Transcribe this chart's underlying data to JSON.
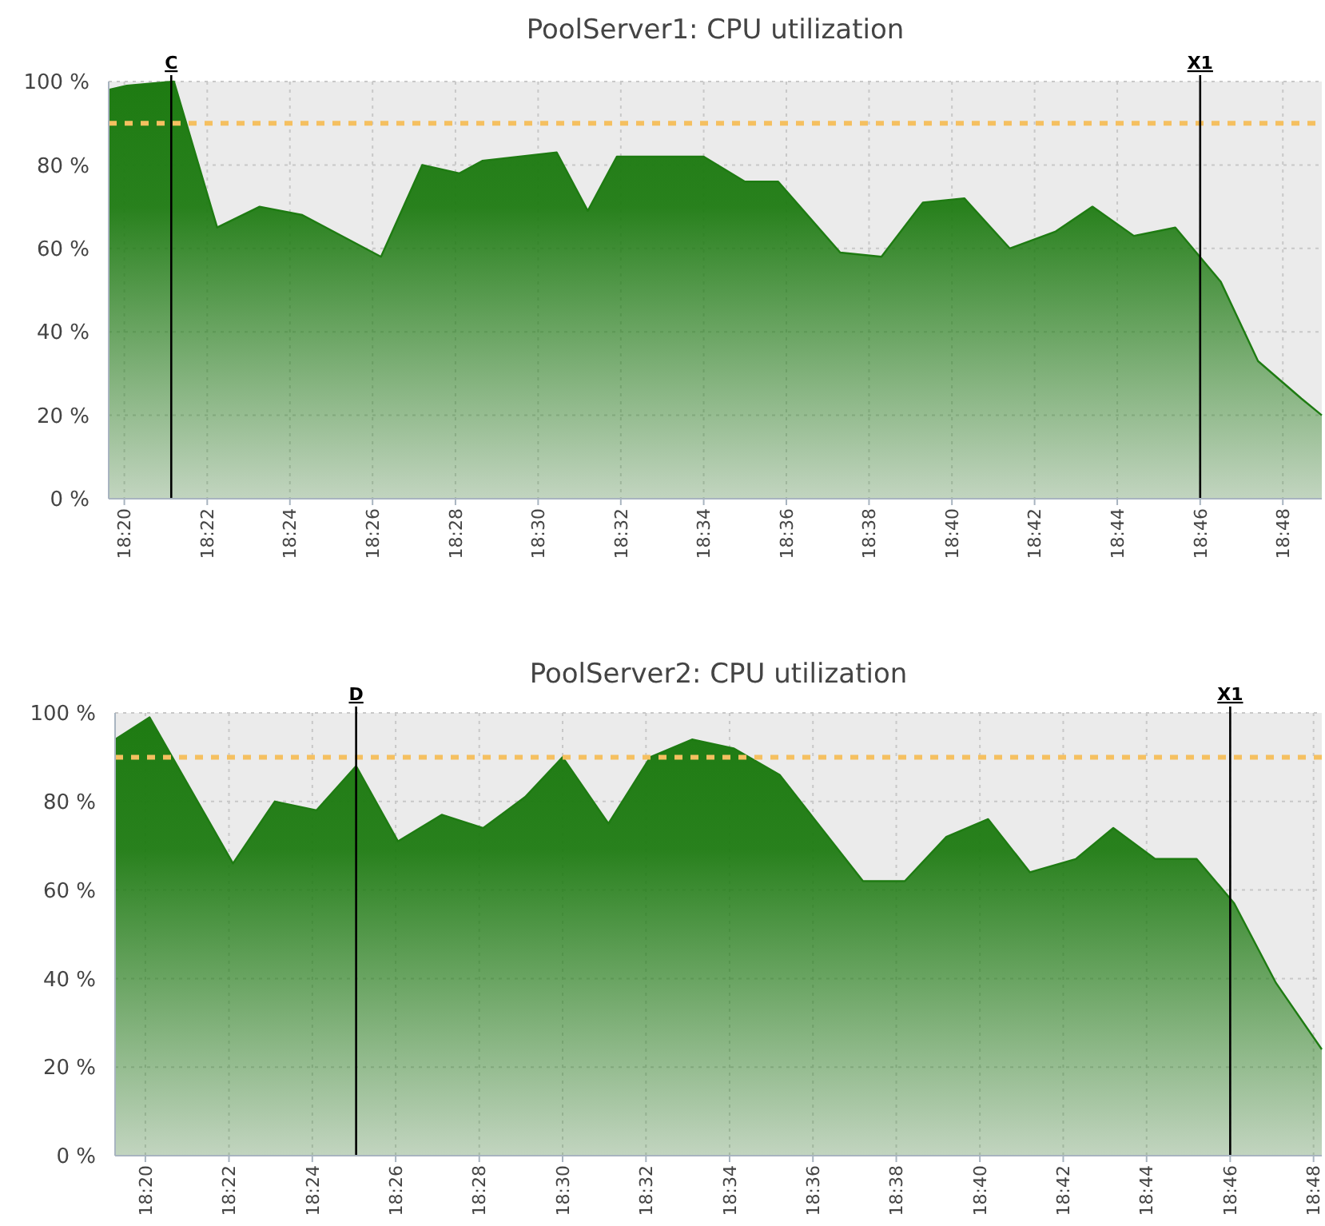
{
  "chart_data": [
    {
      "type": "area",
      "title": "PoolServer1: CPU utilization",
      "x": [
        18.327,
        18.3343,
        18.3533,
        18.3707,
        18.3878,
        18.405,
        18.4367,
        18.4533,
        18.4683,
        18.4775,
        18.5075,
        18.52,
        18.5317,
        18.5667,
        18.5833,
        18.5967,
        18.6217,
        18.6383,
        18.655,
        18.6717,
        18.69,
        18.7083,
        18.7233,
        18.74,
        18.7567,
        18.775,
        18.79,
        18.8075,
        18.8157
      ],
      "series": [
        {
          "color": "#1e7b12",
          "values": [
            98,
            99,
            100,
            65,
            70,
            68,
            58,
            80,
            78,
            81,
            83,
            69,
            82,
            82,
            76,
            76,
            59,
            58,
            71,
            72,
            60,
            64,
            70,
            63,
            65,
            52,
            33,
            24,
            20
          ]
        }
      ],
      "xlim": [
        18.327,
        18.8157
      ],
      "xticks": [
        {
          "value": 18.3333,
          "label": "18:20"
        },
        {
          "value": 18.3667,
          "label": "18:22"
        },
        {
          "value": 18.4,
          "label": "18:24"
        },
        {
          "value": 18.4333,
          "label": "18:26"
        },
        {
          "value": 18.4667,
          "label": "18:28"
        },
        {
          "value": 18.5,
          "label": "18:30"
        },
        {
          "value": 18.5333,
          "label": "18:32"
        },
        {
          "value": 18.5667,
          "label": "18:34"
        },
        {
          "value": 18.6,
          "label": "18:36"
        },
        {
          "value": 18.6333,
          "label": "18:38"
        },
        {
          "value": 18.6667,
          "label": "18:40"
        },
        {
          "value": 18.7,
          "label": "18:42"
        },
        {
          "value": 18.7333,
          "label": "18:44"
        },
        {
          "value": 18.7667,
          "label": "18:46"
        },
        {
          "value": 18.8,
          "label": "18:48"
        }
      ],
      "ylim": [
        0,
        100
      ],
      "yticks": [
        {
          "value": 0,
          "label": "0 %"
        },
        {
          "value": 20,
          "label": "20 %"
        },
        {
          "value": 40,
          "label": "40 %"
        },
        {
          "value": 60,
          "label": "60 %"
        },
        {
          "value": 80,
          "label": "80 %"
        },
        {
          "value": 100,
          "label": "100 %"
        }
      ],
      "grid": true,
      "ref_lines": [
        {
          "axis": "y",
          "value": 90,
          "label": null,
          "color": "#f5c060",
          "line_style": "dashed"
        },
        {
          "axis": "x",
          "value": 18.3522,
          "label": "C",
          "color": "#000000"
        },
        {
          "axis": "x",
          "value": 18.7667,
          "label": "X1",
          "color": "#000000"
        }
      ]
    },
    {
      "type": "area",
      "title": "PoolServer2: CPU utilization",
      "x": [
        18.3212,
        18.335,
        18.3683,
        18.385,
        18.4017,
        18.4175,
        18.4342,
        18.4517,
        18.4683,
        18.485,
        18.5,
        18.5183,
        18.535,
        18.5517,
        18.5683,
        18.5867,
        18.62,
        18.6367,
        18.6533,
        18.67,
        18.6867,
        18.705,
        18.72,
        18.7367,
        18.7533,
        18.7683,
        18.785,
        18.8033
      ],
      "series": [
        {
          "color": "#1e7b12",
          "values": [
            94,
            99,
            66,
            80,
            78,
            88,
            71,
            77,
            74,
            81,
            90,
            75,
            90,
            94,
            92,
            86,
            62,
            62,
            72,
            76,
            64,
            67,
            74,
            67,
            67,
            57,
            39,
            24
          ]
        }
      ],
      "xlim": [
        18.3212,
        18.8033
      ],
      "xticks": [
        {
          "value": 18.3333,
          "label": "18:20"
        },
        {
          "value": 18.3667,
          "label": "18:22"
        },
        {
          "value": 18.4,
          "label": "18:24"
        },
        {
          "value": 18.4333,
          "label": "18:26"
        },
        {
          "value": 18.4667,
          "label": "18:28"
        },
        {
          "value": 18.5,
          "label": "18:30"
        },
        {
          "value": 18.5333,
          "label": "18:32"
        },
        {
          "value": 18.5667,
          "label": "18:34"
        },
        {
          "value": 18.6,
          "label": "18:36"
        },
        {
          "value": 18.6333,
          "label": "18:38"
        },
        {
          "value": 18.6667,
          "label": "18:40"
        },
        {
          "value": 18.7,
          "label": "18:42"
        },
        {
          "value": 18.7333,
          "label": "18:44"
        },
        {
          "value": 18.7667,
          "label": "18:46"
        },
        {
          "value": 18.8,
          "label": "18:48"
        }
      ],
      "ylim": [
        0,
        100
      ],
      "yticks": [
        {
          "value": 0,
          "label": "0 %"
        },
        {
          "value": 20,
          "label": "20 %"
        },
        {
          "value": 40,
          "label": "40 %"
        },
        {
          "value": 60,
          "label": "60 %"
        },
        {
          "value": 80,
          "label": "80 %"
        },
        {
          "value": 100,
          "label": "100 %"
        }
      ],
      "grid": true,
      "ref_lines": [
        {
          "axis": "y",
          "value": 90,
          "label": null,
          "color": "#f5c060",
          "line_style": "dashed"
        },
        {
          "axis": "x",
          "value": 18.4175,
          "label": "D",
          "color": "#000000"
        },
        {
          "axis": "x",
          "value": 18.7667,
          "label": "X1",
          "color": "#000000"
        }
      ]
    }
  ]
}
